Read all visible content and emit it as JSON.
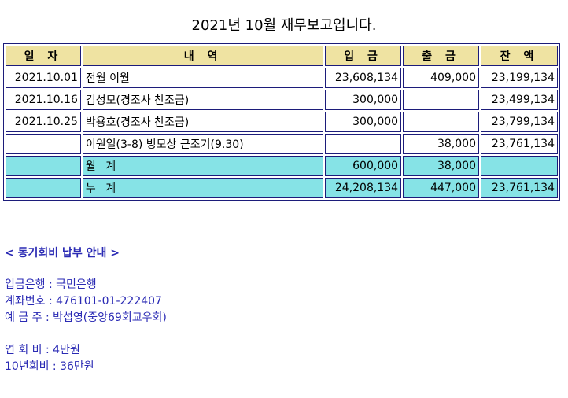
{
  "title": "2021년 10월 재무보고입니다.",
  "table": {
    "headers": [
      "일 자",
      "내 역",
      "입 금",
      "출 금",
      "잔 액"
    ],
    "rows": [
      {
        "date": "2021.10.01",
        "desc": "전월 이월",
        "income": "23,608,134",
        "expense": "409,000",
        "balance": "23,199,134"
      },
      {
        "date": "2021.10.16",
        "desc": "김성모(경조사 찬조금)",
        "income": "300,000",
        "expense": "",
        "balance": "23,499,134"
      },
      {
        "date": "2021.10.25",
        "desc": "박용호(경조사 찬조금)",
        "income": "300,000",
        "expense": "",
        "balance": "23,799,134"
      },
      {
        "date": "",
        "desc": "이원일(3-8) 빙모상 근조기(9.30)",
        "income": "",
        "expense": "38,000",
        "balance": "23,761,134"
      }
    ],
    "summary": [
      {
        "label": "월 계",
        "income": "600,000",
        "expense": "38,000",
        "balance": ""
      },
      {
        "label": "누 계",
        "income": "24,208,134",
        "expense": "447,000",
        "balance": "23,761,134"
      }
    ]
  },
  "info": {
    "heading": "< 동기회비 납부 안내 >",
    "bank": "입금은행 : 국민은행",
    "account": "계좌번호 : 476101-01-222407",
    "holder": "예 금 주 : 박섭영(중앙69회교우회)",
    "annual_fee": "연 회 비 : 4만원",
    "ten_year_fee": "10년회비 : 36만원"
  },
  "colors": {
    "header_bg": "#efe3a2",
    "summary_bg": "#86e3e6",
    "border": "#1c1c7a",
    "info_text": "#2a2ab4"
  }
}
